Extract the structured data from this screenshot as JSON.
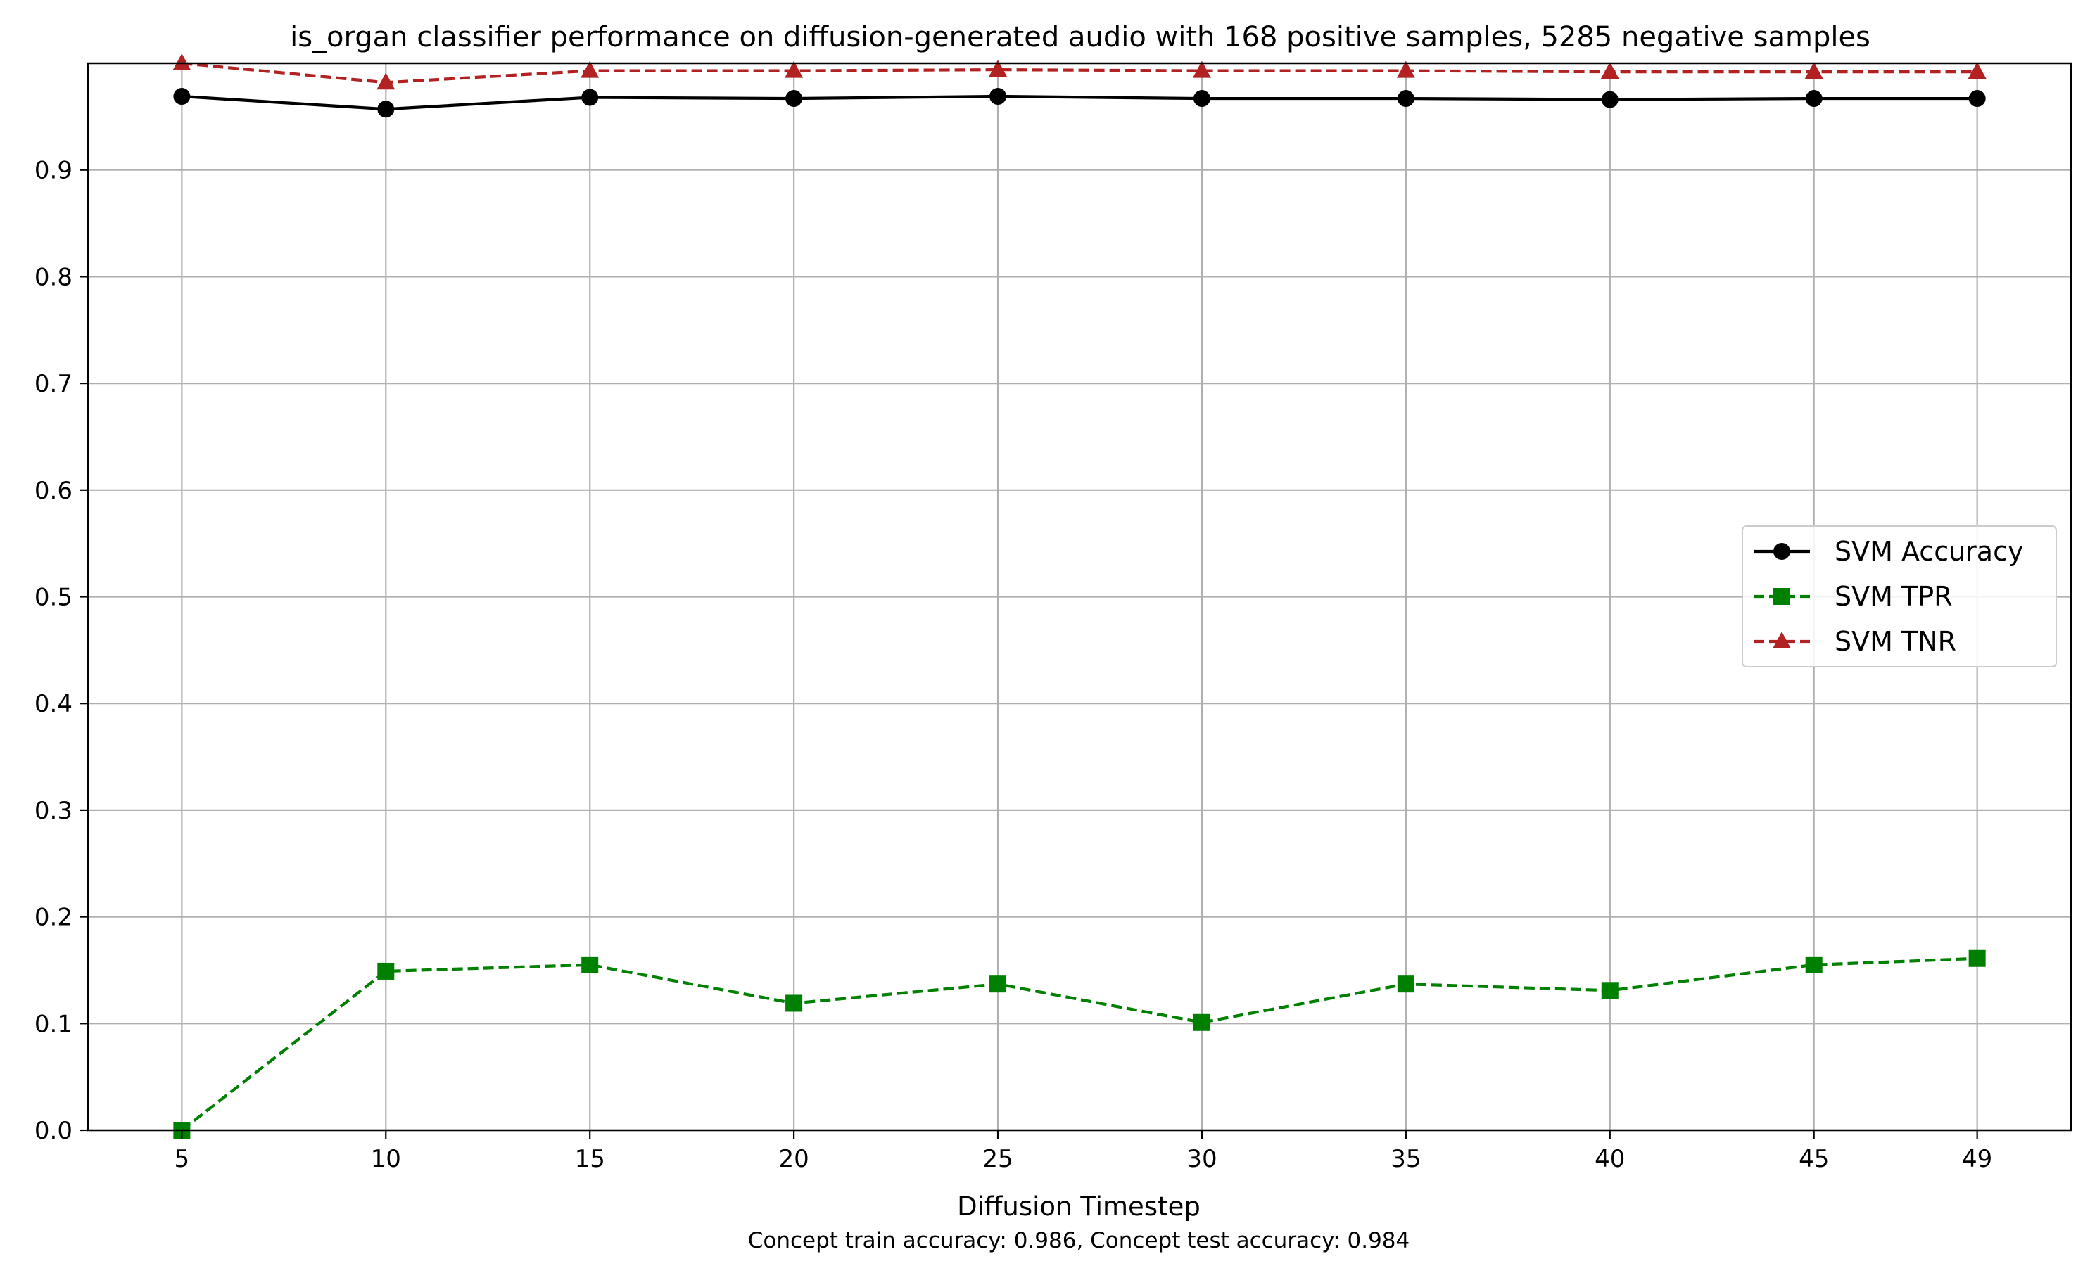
{
  "chart_data": {
    "type": "line",
    "title": "is_organ classifier performance on diffusion-generated audio with 168 positive samples, 5285 negative samples",
    "xlabel": "Diffusion Timestep",
    "ylabel": "",
    "caption": "Concept train accuracy: 0.986, Concept test accuracy: 0.984",
    "x": [
      5,
      10,
      15,
      20,
      25,
      30,
      35,
      40,
      45,
      49
    ],
    "x_tick_labels": [
      "5",
      "10",
      "15",
      "20",
      "25",
      "30",
      "35",
      "40",
      "45",
      "49"
    ],
    "y_ticks": [
      0.0,
      0.1,
      0.2,
      0.3,
      0.4,
      0.5,
      0.6,
      0.7,
      0.8,
      0.9
    ],
    "y_tick_labels": [
      "0.0",
      "0.1",
      "0.2",
      "0.3",
      "0.4",
      "0.5",
      "0.6",
      "0.7",
      "0.8",
      "0.9"
    ],
    "xlim": [
      2.7,
      51.3
    ],
    "ylim": [
      0.0,
      1.0
    ],
    "grid": true,
    "legend_position": "center-right",
    "series": [
      {
        "name": "SVM Accuracy",
        "color": "#000000",
        "marker": "circle",
        "line_style": "solid",
        "values": [
          0.969,
          0.957,
          0.968,
          0.967,
          0.969,
          0.967,
          0.967,
          0.966,
          0.967,
          0.967
        ]
      },
      {
        "name": "SVM TPR",
        "color": "#008000",
        "marker": "square",
        "line_style": "dashed",
        "values": [
          0.0,
          0.149,
          0.155,
          0.119,
          0.137,
          0.101,
          0.137,
          0.131,
          0.155,
          0.161
        ]
      },
      {
        "name": "SVM TNR",
        "color": "#b22222",
        "marker": "triangle",
        "line_style": "dashed",
        "values": [
          1.0,
          0.982,
          0.993,
          0.993,
          0.994,
          0.993,
          0.993,
          0.992,
          0.992,
          0.992
        ]
      }
    ]
  }
}
